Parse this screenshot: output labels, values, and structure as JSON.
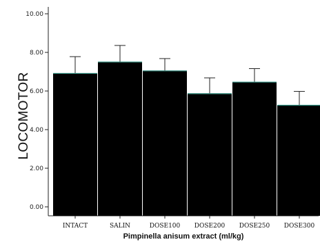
{
  "chart_data": {
    "type": "bar",
    "title": "",
    "xlabel": "Pimpinella anisum extract (ml/kg)",
    "ylabel": "LOCOMOTOR",
    "categories": [
      "INTACT",
      "SALIN",
      "DOSE100",
      "DOSE200",
      "DOSE250",
      "DOSE300"
    ],
    "series": [
      {
        "values": [
          6.93,
          7.52,
          7.06,
          5.88,
          6.48,
          5.28
        ],
        "error_upper": [
          0.85,
          0.84,
          0.62,
          0.8,
          0.68,
          0.7
        ]
      }
    ],
    "ylim": [
      0,
      10
    ],
    "yticks": [
      "0.00",
      "2.00",
      "4.00",
      "6.00",
      "8.00",
      "10.00"
    ],
    "grid": false,
    "legend": "none",
    "colors": {
      "bar": "#000000",
      "bar_top": "#3a9b8c",
      "error_bar": "#222222",
      "axis": "#222222"
    }
  }
}
